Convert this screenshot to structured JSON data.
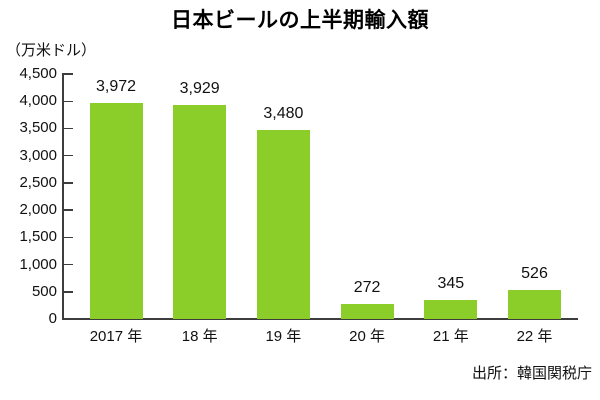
{
  "chart_data": {
    "type": "bar",
    "title": "日本ビールの上半期輸入額",
    "unit_label": "（万米ドル）",
    "categories": [
      "2017 年",
      "18 年",
      "19 年",
      "20 年",
      "21 年",
      "22 年"
    ],
    "values": [
      3972,
      3929,
      3480,
      272,
      345,
      526
    ],
    "value_labels": [
      "3,972",
      "3,929",
      "3,480",
      "272",
      "345",
      "526"
    ],
    "ylim": [
      0,
      4500
    ],
    "y_tick_step": 500,
    "y_tick_labels": [
      "0",
      "500",
      "1,000",
      "1,500",
      "2,000",
      "2,500",
      "3,000",
      "3,500",
      "4,000",
      "4,500"
    ],
    "grid": false,
    "legend": "none",
    "bar_color": "#8bce29",
    "axis_color": "#3d3d3d",
    "xlabel": "",
    "ylabel": "（万米ドル）"
  },
  "source": "出所：韓国関税庁"
}
